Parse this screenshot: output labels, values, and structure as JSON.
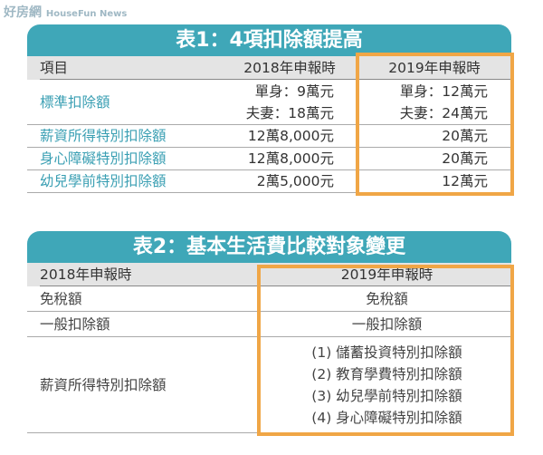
{
  "watermark": {
    "brand": "好房網",
    "sub": "HouseFun News"
  },
  "table1": {
    "title": "表1：4項扣除額提高",
    "header": [
      "項目",
      "2018年申報時",
      "2019年申報時"
    ],
    "rows": [
      [
        [
          "標準扣除額"
        ],
        [
          "單身：9萬元",
          "夫妻：18萬元"
        ],
        [
          "單身：12萬元",
          "夫妻：24萬元"
        ]
      ],
      [
        [
          "薪資所得特別扣除額"
        ],
        [
          "12萬8,000元"
        ],
        [
          "20萬元"
        ]
      ],
      [
        [
          "身心障礙特別扣除額"
        ],
        [
          "12萬8,000元"
        ],
        [
          "20萬元"
        ]
      ],
      [
        [
          "幼兒學前特別扣除額"
        ],
        [
          "2萬5,000元"
        ],
        [
          "12萬元"
        ]
      ]
    ]
  },
  "table2": {
    "title": "表2：基本生活費比較對象變更",
    "header": [
      "2018年申報時",
      "2019年申報時"
    ],
    "rows": [
      [
        [
          "免稅額"
        ],
        [
          "免稅額"
        ]
      ],
      [
        [
          "一般扣除額"
        ],
        [
          "一般扣除額"
        ]
      ],
      [
        [
          "薪資所得特別扣除額"
        ],
        [
          "(1) 儲蓄投資特別扣除額",
          "(2) 教育學費特別扣除額",
          "(3) 幼兒學前特別扣除額",
          "(4) 身心障礙特別扣除額"
        ]
      ]
    ]
  }
}
